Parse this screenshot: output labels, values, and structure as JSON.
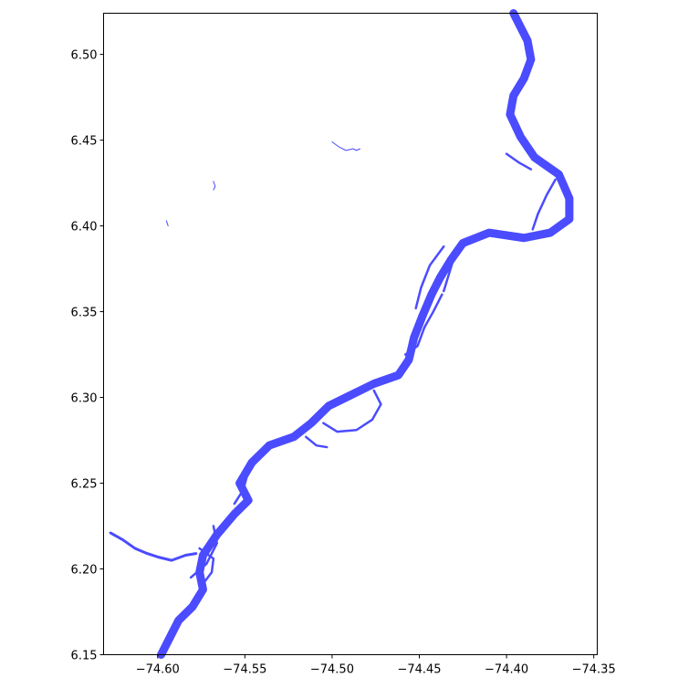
{
  "colors": {
    "river": "#4b4bff",
    "axis": "#000000",
    "background": "#ffffff"
  },
  "chart_data": {
    "type": "map",
    "title": "",
    "xlabel": "",
    "ylabel": "",
    "xlim": [
      -74.631,
      -74.348
    ],
    "ylim": [
      6.15,
      6.524
    ],
    "grid": false,
    "x_ticks": [
      {
        "value": -74.6,
        "label": "−74.60"
      },
      {
        "value": -74.55,
        "label": "−74.55"
      },
      {
        "value": -74.5,
        "label": "−74.50"
      },
      {
        "value": -74.45,
        "label": "−74.45"
      },
      {
        "value": -74.4,
        "label": "−74.40"
      },
      {
        "value": -74.35,
        "label": "−74.35"
      }
    ],
    "y_ticks": [
      {
        "value": 6.15,
        "label": "6.15"
      },
      {
        "value": 6.2,
        "label": "6.20"
      },
      {
        "value": 6.25,
        "label": "6.25"
      },
      {
        "value": 6.3,
        "label": "6.30"
      },
      {
        "value": 6.35,
        "label": "6.35"
      },
      {
        "value": 6.4,
        "label": "6.40"
      },
      {
        "value": 6.45,
        "label": "6.45"
      },
      {
        "value": 6.5,
        "label": "6.50"
      }
    ],
    "features": {
      "main_river": [
        [
          -74.598,
          6.15
        ],
        [
          -74.593,
          6.16
        ],
        [
          -74.588,
          6.17
        ],
        [
          -74.58,
          6.178
        ],
        [
          -74.574,
          6.188
        ],
        [
          -74.576,
          6.198
        ],
        [
          -74.574,
          6.208
        ],
        [
          -74.566,
          6.22
        ],
        [
          -74.556,
          6.232
        ],
        [
          -74.548,
          6.24
        ],
        [
          -74.553,
          6.25
        ],
        [
          -74.546,
          6.262
        ],
        [
          -74.536,
          6.272
        ],
        [
          -74.522,
          6.277
        ],
        [
          -74.512,
          6.285
        ],
        [
          -74.502,
          6.295
        ],
        [
          -74.488,
          6.302
        ],
        [
          -74.476,
          6.308
        ],
        [
          -74.462,
          6.313
        ],
        [
          -74.456,
          6.322
        ],
        [
          -74.453,
          6.335
        ],
        [
          -74.448,
          6.348
        ],
        [
          -74.443,
          6.36
        ],
        [
          -74.438,
          6.37
        ],
        [
          -74.432,
          6.38
        ],
        [
          -74.425,
          6.39
        ],
        [
          -74.41,
          6.396
        ],
        [
          -74.39,
          6.393
        ],
        [
          -74.375,
          6.396
        ],
        [
          -74.364,
          6.404
        ],
        [
          -74.364,
          6.416
        ],
        [
          -74.37,
          6.43
        ],
        [
          -74.384,
          6.44
        ],
        [
          -74.392,
          6.452
        ],
        [
          -74.398,
          6.465
        ],
        [
          -74.396,
          6.476
        ],
        [
          -74.39,
          6.486
        ],
        [
          -74.386,
          6.497
        ],
        [
          -74.388,
          6.508
        ],
        [
          -74.393,
          6.518
        ],
        [
          -74.396,
          6.524
        ]
      ],
      "side_channels": [
        [
          [
            -74.581,
            6.195
          ],
          [
            -74.572,
            6.203
          ],
          [
            -74.566,
            6.215
          ],
          [
            -74.568,
            6.225
          ]
        ],
        [
          [
            -74.575,
            6.19
          ],
          [
            -74.569,
            6.198
          ],
          [
            -74.568,
            6.206
          ],
          [
            -74.576,
            6.212
          ]
        ],
        [
          [
            -74.556,
            6.238
          ],
          [
            -74.551,
            6.246
          ],
          [
            -74.548,
            6.257
          ],
          [
            -74.545,
            6.264
          ]
        ],
        [
          [
            -74.505,
            6.285
          ],
          [
            -74.497,
            6.28
          ],
          [
            -74.486,
            6.281
          ],
          [
            -74.477,
            6.287
          ],
          [
            -74.472,
            6.296
          ],
          [
            -74.476,
            6.304
          ]
        ],
        [
          [
            -74.515,
            6.277
          ],
          [
            -74.509,
            6.272
          ],
          [
            -74.503,
            6.271
          ]
        ],
        [
          [
            -74.458,
            6.325
          ],
          [
            -74.451,
            6.33
          ],
          [
            -74.447,
            6.341
          ],
          [
            -74.442,
            6.35
          ],
          [
            -74.437,
            6.36
          ]
        ],
        [
          [
            -74.436,
            6.362
          ],
          [
            -74.433,
            6.372
          ],
          [
            -74.43,
            6.382
          ]
        ],
        [
          [
            -74.436,
            6.388
          ],
          [
            -74.444,
            6.377
          ],
          [
            -74.449,
            6.364
          ],
          [
            -74.452,
            6.352
          ]
        ],
        [
          [
            -74.4,
            6.442
          ],
          [
            -74.393,
            6.437
          ],
          [
            -74.386,
            6.433
          ]
        ],
        [
          [
            -74.372,
            6.427
          ],
          [
            -74.377,
            6.418
          ],
          [
            -74.382,
            6.407
          ],
          [
            -74.385,
            6.398
          ]
        ]
      ],
      "tributary": [
        [
          -74.627,
          6.221
        ],
        [
          -74.62,
          6.217
        ],
        [
          -74.613,
          6.212
        ],
        [
          -74.606,
          6.209
        ],
        [
          -74.6,
          6.207
        ],
        [
          -74.592,
          6.205
        ],
        [
          -74.584,
          6.208
        ],
        [
          -74.578,
          6.209
        ]
      ],
      "small_fragments": [
        [
          [
            -74.5,
            6.449
          ],
          [
            -74.496,
            6.446
          ],
          [
            -74.492,
            6.444
          ],
          [
            -74.488,
            6.445
          ],
          [
            -74.486,
            6.444
          ],
          [
            -74.484,
            6.445
          ]
        ],
        [
          [
            -74.568,
            6.426
          ],
          [
            -74.567,
            6.423
          ],
          [
            -74.568,
            6.421
          ]
        ],
        [
          [
            -74.595,
            6.403
          ],
          [
            -74.594,
            6.4
          ]
        ]
      ]
    }
  }
}
